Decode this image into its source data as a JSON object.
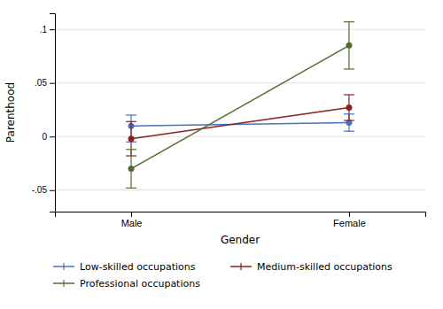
{
  "chart_data": {
    "type": "line",
    "categories": [
      "Male",
      "Female"
    ],
    "xlabel": "Gender",
    "ylabel": "Parenthood",
    "ylim": [
      -0.07,
      0.115
    ],
    "yticks": [
      {
        "value": -0.05,
        "label": "-.05"
      },
      0,
      {
        "value": 0.05,
        "label": ".05"
      },
      {
        "value": 0.1,
        "label": ".1"
      }
    ],
    "grid": true,
    "legend": "bottom",
    "marker": "circle",
    "series": [
      {
        "name": "Low-skilled occupations",
        "color": "#4472C4",
        "values": [
          0.01,
          0.013
        ],
        "lower": [
          -0.005,
          0.005
        ],
        "upper": [
          0.02,
          0.021
        ]
      },
      {
        "name": "Medium-skilled occupations",
        "color": "#8B2020",
        "values": [
          -0.002,
          0.027
        ],
        "lower": [
          -0.018,
          0.015
        ],
        "upper": [
          0.014,
          0.039
        ]
      },
      {
        "name": "Professional occupations",
        "color": "#556B2F",
        "values": [
          -0.03,
          0.085
        ],
        "lower": [
          -0.048,
          0.063
        ],
        "upper": [
          -0.012,
          0.107
        ]
      }
    ]
  }
}
